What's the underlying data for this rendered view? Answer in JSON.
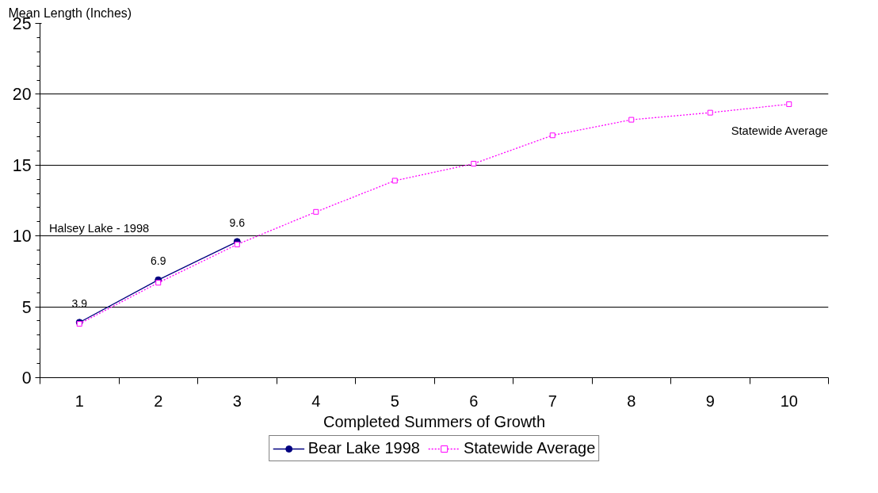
{
  "chart_data": {
    "type": "line",
    "ylabel": "Mean Length (Inches)",
    "xlabel": "Completed Summers of Growth",
    "categories": [
      "1",
      "2",
      "3",
      "4",
      "5",
      "6",
      "7",
      "8",
      "9",
      "10"
    ],
    "series": [
      {
        "name": "Bear Lake 1998",
        "color": "#000080",
        "marker": "circle",
        "line_style": "solid",
        "values": [
          3.9,
          6.9,
          9.6,
          null,
          null,
          null,
          null,
          null,
          null,
          null
        ],
        "value_labels": [
          "3.9",
          "6.9",
          "9.6",
          null,
          null,
          null,
          null,
          null,
          null,
          null
        ]
      },
      {
        "name": "Statewide Average",
        "color": "#ff00ff",
        "marker": "square",
        "line_style": "dotted",
        "values": [
          3.8,
          6.7,
          9.4,
          11.7,
          13.9,
          15.1,
          17.1,
          18.2,
          18.7,
          19.3
        ]
      }
    ],
    "annotations": [
      "Halsey Lake - 1998",
      "Statewide Average"
    ],
    "ylim": [
      0,
      25
    ],
    "yticks": [
      0,
      5,
      10,
      15,
      20,
      25
    ],
    "grid": "y",
    "legend": "bottom"
  }
}
